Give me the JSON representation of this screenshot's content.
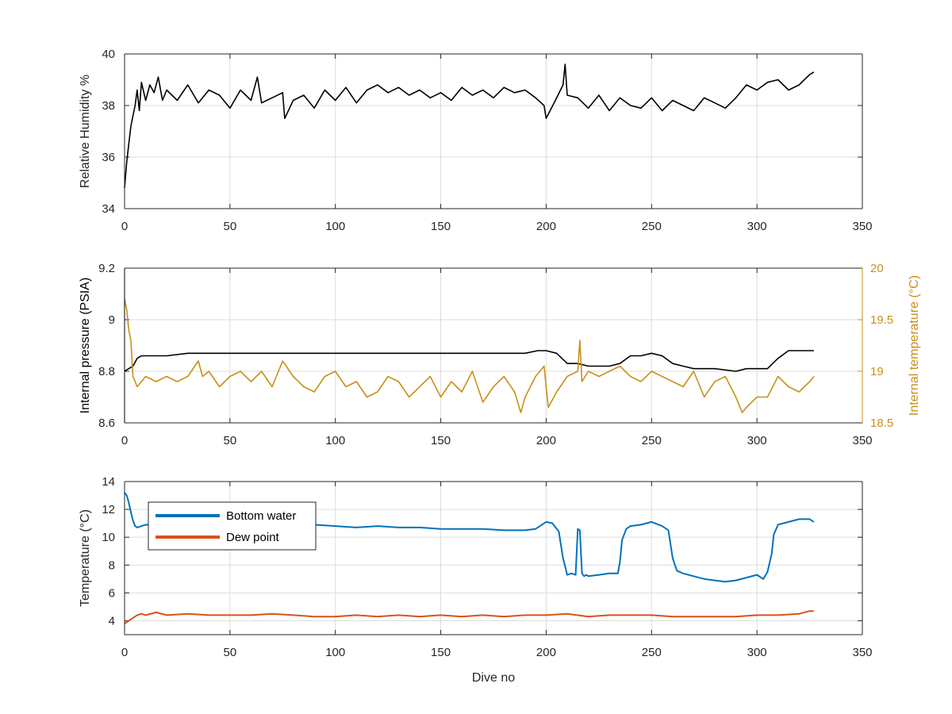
{
  "chart_data": [
    {
      "type": "line",
      "title": "",
      "xlabel": "",
      "ylabel": "Relative Humidity %",
      "xlim": [
        0,
        350
      ],
      "ylim": [
        34,
        40
      ],
      "xticks": [
        "0",
        "50",
        "100",
        "150",
        "200",
        "250",
        "300",
        "350"
      ],
      "yticks": [
        "34",
        "36",
        "38",
        "40"
      ],
      "grid": true,
      "series": [
        {
          "color": "#000000",
          "x": [
            0,
            1,
            2,
            3,
            4,
            5,
            6,
            7,
            8,
            10,
            12,
            14,
            16,
            18,
            20,
            25,
            30,
            35,
            40,
            45,
            50,
            55,
            60,
            63,
            65,
            70,
            75,
            76,
            80,
            85,
            90,
            95,
            100,
            105,
            110,
            115,
            120,
            125,
            130,
            135,
            140,
            145,
            150,
            155,
            160,
            165,
            170,
            175,
            180,
            185,
            190,
            195,
            199,
            200,
            205,
            208,
            209,
            210,
            215,
            220,
            225,
            230,
            235,
            240,
            245,
            250,
            255,
            260,
            265,
            270,
            275,
            280,
            285,
            290,
            295,
            300,
            305,
            310,
            315,
            320,
            325,
            327
          ],
          "values": [
            34.8,
            35.8,
            36.5,
            37.2,
            37.6,
            38.0,
            38.6,
            37.8,
            38.9,
            38.2,
            38.8,
            38.5,
            39.1,
            38.2,
            38.6,
            38.2,
            38.8,
            38.1,
            38.6,
            38.4,
            37.9,
            38.6,
            38.2,
            39.1,
            38.1,
            38.3,
            38.5,
            37.5,
            38.2,
            38.4,
            37.9,
            38.6,
            38.2,
            38.7,
            38.1,
            38.6,
            38.8,
            38.5,
            38.7,
            38.4,
            38.6,
            38.3,
            38.5,
            38.2,
            38.7,
            38.4,
            38.6,
            38.3,
            38.7,
            38.5,
            38.6,
            38.3,
            38.0,
            37.5,
            38.3,
            38.8,
            39.6,
            38.4,
            38.3,
            37.9,
            38.4,
            37.8,
            38.3,
            38.0,
            37.9,
            38.3,
            37.8,
            38.2,
            38.0,
            37.8,
            38.3,
            38.1,
            37.9,
            38.3,
            38.8,
            38.6,
            38.9,
            39.0,
            38.6,
            38.8,
            39.2,
            39.3
          ]
        }
      ]
    },
    {
      "type": "line",
      "title": "",
      "xlabel": "",
      "ylabel": "Internal pressure (PSIA)",
      "ylabel_right": "Internal temperature (°C)",
      "xlim": [
        0,
        350
      ],
      "ylim": [
        8.6,
        9.2
      ],
      "ylim_right": [
        18.5,
        20
      ],
      "xticks": [
        "0",
        "50",
        "100",
        "150",
        "200",
        "250",
        "300",
        "350"
      ],
      "yticks": [
        "8.6",
        "8.8",
        "9",
        "9.2"
      ],
      "yticks_right": [
        "18.5",
        "19",
        "19.5",
        "20"
      ],
      "grid": true,
      "series": [
        {
          "axis": "left",
          "color": "#000000",
          "x": [
            0,
            2,
            4,
            6,
            8,
            10,
            20,
            30,
            40,
            50,
            60,
            70,
            80,
            90,
            100,
            110,
            120,
            130,
            140,
            150,
            160,
            170,
            180,
            190,
            196,
            200,
            205,
            210,
            215,
            220,
            225,
            230,
            235,
            240,
            245,
            250,
            255,
            260,
            265,
            270,
            280,
            290,
            295,
            300,
            305,
            310,
            315,
            320,
            325,
            327
          ],
          "values": [
            8.8,
            8.81,
            8.82,
            8.85,
            8.86,
            8.86,
            8.86,
            8.87,
            8.87,
            8.87,
            8.87,
            8.87,
            8.87,
            8.87,
            8.87,
            8.87,
            8.87,
            8.87,
            8.87,
            8.87,
            8.87,
            8.87,
            8.87,
            8.87,
            8.88,
            8.88,
            8.87,
            8.83,
            8.83,
            8.82,
            8.82,
            8.82,
            8.83,
            8.86,
            8.86,
            8.87,
            8.86,
            8.83,
            8.82,
            8.81,
            8.81,
            8.8,
            8.81,
            8.81,
            8.81,
            8.85,
            8.88,
            8.88,
            8.88,
            8.88
          ]
        },
        {
          "axis": "right",
          "color": "#C8901A",
          "x": [
            0,
            1,
            2,
            3,
            4,
            5,
            6,
            8,
            10,
            15,
            20,
            25,
            30,
            35,
            37,
            40,
            45,
            50,
            55,
            60,
            65,
            70,
            75,
            80,
            85,
            90,
            95,
            100,
            105,
            110,
            115,
            120,
            125,
            130,
            135,
            140,
            145,
            150,
            155,
            160,
            165,
            170,
            175,
            180,
            185,
            188,
            190,
            195,
            199,
            201,
            205,
            210,
            215,
            216,
            217,
            220,
            225,
            230,
            235,
            240,
            245,
            250,
            255,
            260,
            265,
            270,
            275,
            280,
            285,
            290,
            293,
            295,
            300,
            305,
            310,
            315,
            320,
            325,
            327
          ],
          "values": [
            19.7,
            19.6,
            19.4,
            19.3,
            18.95,
            18.9,
            18.85,
            18.9,
            18.95,
            18.9,
            18.95,
            18.9,
            18.95,
            19.1,
            18.95,
            19.0,
            18.85,
            18.95,
            19.0,
            18.9,
            19.0,
            18.85,
            19.1,
            18.95,
            18.85,
            18.8,
            18.95,
            19.0,
            18.85,
            18.9,
            18.75,
            18.8,
            18.95,
            18.9,
            18.75,
            18.85,
            18.95,
            18.75,
            18.9,
            18.8,
            19.0,
            18.7,
            18.85,
            18.95,
            18.8,
            18.6,
            18.75,
            18.95,
            19.05,
            18.65,
            18.8,
            18.95,
            19.0,
            19.3,
            18.9,
            19.0,
            18.95,
            19.0,
            19.05,
            18.95,
            18.9,
            19.0,
            18.95,
            18.9,
            18.85,
            19.0,
            18.75,
            18.9,
            18.95,
            18.75,
            18.6,
            18.65,
            18.75,
            18.75,
            18.95,
            18.85,
            18.8,
            18.9,
            18.95
          ]
        }
      ]
    },
    {
      "type": "line",
      "title": "",
      "xlabel": "Dive no",
      "ylabel": "Temperature (°C)",
      "xlim": [
        0,
        350
      ],
      "ylim": [
        3,
        14
      ],
      "xticks": [
        "0",
        "50",
        "100",
        "150",
        "200",
        "250",
        "300",
        "350"
      ],
      "yticks": [
        "4",
        "6",
        "8",
        "10",
        "12",
        "14"
      ],
      "grid": true,
      "legend": "top-left",
      "series": [
        {
          "name": "Bottom water",
          "color": "#0072BD",
          "x": [
            0,
            1,
            2,
            3,
            4,
            5,
            6,
            8,
            10,
            20,
            30,
            40,
            50,
            60,
            70,
            80,
            90,
            100,
            110,
            120,
            130,
            140,
            150,
            160,
            170,
            180,
            190,
            195,
            200,
            203,
            206,
            208,
            210,
            212,
            214,
            215,
            216,
            217,
            218,
            219,
            220,
            225,
            230,
            234,
            235,
            236,
            238,
            240,
            245,
            250,
            255,
            258,
            260,
            262,
            265,
            270,
            275,
            280,
            285,
            290,
            295,
            300,
            303,
            305,
            307,
            308,
            310,
            315,
            320,
            325,
            327
          ],
          "values": [
            13.2,
            13.0,
            12.5,
            11.8,
            11.2,
            10.8,
            10.7,
            10.8,
            10.9,
            10.8,
            11.0,
            10.9,
            10.9,
            11.0,
            10.9,
            10.8,
            10.9,
            10.8,
            10.7,
            10.8,
            10.7,
            10.7,
            10.6,
            10.6,
            10.6,
            10.5,
            10.5,
            10.6,
            11.1,
            11.0,
            10.4,
            8.5,
            7.3,
            7.4,
            7.3,
            10.6,
            10.5,
            7.4,
            7.2,
            7.3,
            7.2,
            7.3,
            7.4,
            7.4,
            8.2,
            9.8,
            10.6,
            10.8,
            10.9,
            11.1,
            10.8,
            10.5,
            8.5,
            7.6,
            7.4,
            7.2,
            7.0,
            6.9,
            6.8,
            6.9,
            7.1,
            7.3,
            7.0,
            7.5,
            8.8,
            10.2,
            10.9,
            11.1,
            11.3,
            11.3,
            11.1
          ]
        },
        {
          "name": "Dew point",
          "color": "#D95319",
          "x": [
            0,
            2,
            4,
            6,
            8,
            10,
            15,
            20,
            30,
            40,
            50,
            60,
            70,
            80,
            90,
            100,
            110,
            120,
            130,
            140,
            150,
            160,
            170,
            180,
            190,
            200,
            210,
            220,
            230,
            240,
            250,
            260,
            270,
            280,
            290,
            300,
            310,
            320,
            325,
            327
          ],
          "values": [
            3.8,
            4.0,
            4.2,
            4.4,
            4.5,
            4.4,
            4.6,
            4.4,
            4.5,
            4.4,
            4.4,
            4.4,
            4.5,
            4.4,
            4.3,
            4.3,
            4.4,
            4.3,
            4.4,
            4.3,
            4.4,
            4.3,
            4.4,
            4.3,
            4.4,
            4.4,
            4.5,
            4.3,
            4.4,
            4.4,
            4.4,
            4.3,
            4.3,
            4.3,
            4.3,
            4.4,
            4.4,
            4.5,
            4.7,
            4.7
          ]
        }
      ]
    }
  ]
}
